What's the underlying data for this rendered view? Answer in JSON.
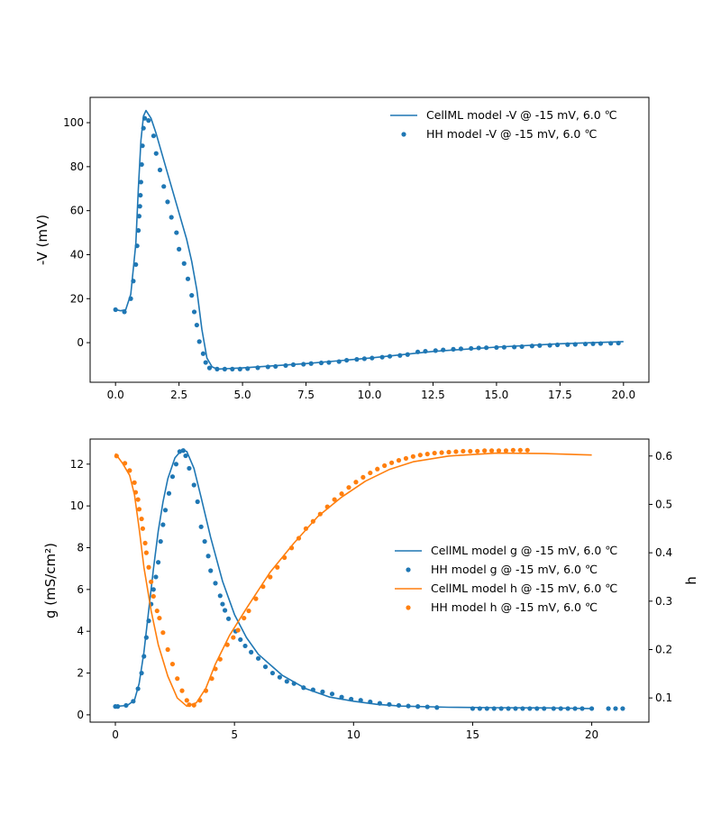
{
  "chart_data": [
    {
      "type": "line",
      "title": "",
      "xlabel": "",
      "ylabel": "-V (mV)",
      "xlim": [
        -1.0,
        21.0
      ],
      "ylim": [
        -18,
        111.5
      ],
      "xticks": [
        "0.0",
        "2.5",
        "5.0",
        "7.5",
        "10.0",
        "12.5",
        "15.0",
        "17.5",
        "20.0"
      ],
      "xtick_values": [
        0,
        2.5,
        5,
        7.5,
        10,
        12.5,
        15,
        17.5,
        20
      ],
      "yticks": [
        "0",
        "20",
        "40",
        "60",
        "80",
        "100"
      ],
      "ytick_values": [
        0,
        20,
        40,
        60,
        80,
        100
      ],
      "grid": false,
      "legend_position": "top-right",
      "series": [
        {
          "name": "CellML model -V @ -15 mV, 6.0 ℃",
          "style": "line",
          "color": "#1f77b4",
          "x": [
            0,
            0.2,
            0.4,
            0.6,
            0.8,
            0.9,
            1.0,
            1.1,
            1.2,
            1.4,
            1.6,
            1.8,
            2.0,
            2.4,
            2.8,
            3.0,
            3.2,
            3.4,
            3.6,
            3.8,
            4.0,
            5,
            7.5,
            10,
            12.5,
            15,
            17.5,
            20
          ],
          "y": [
            15,
            14.5,
            15,
            22,
            45,
            70,
            92,
            103,
            105.5,
            102,
            95,
            87,
            79,
            63,
            47,
            37,
            24,
            6,
            -7,
            -11,
            -12,
            -11.5,
            -9.5,
            -7,
            -4,
            -2,
            -0.5,
            0.5
          ]
        },
        {
          "name": "HH model -V @ -15 mV, 6.0 ℃",
          "style": "dots",
          "color": "#1f77b4",
          "x": [
            0,
            0.35,
            0.6,
            0.7,
            0.8,
            0.85,
            0.9,
            0.93,
            0.96,
            0.98,
            1.0,
            1.03,
            1.06,
            1.1,
            1.15,
            1.3,
            1.5,
            1.6,
            1.75,
            1.9,
            2.05,
            2.2,
            2.4,
            2.5,
            2.7,
            2.85,
            3.0,
            3.1,
            3.2,
            3.3,
            3.45,
            3.55,
            3.7,
            4.0,
            4.3,
            4.6,
            4.9,
            5.2,
            5.6,
            6.0,
            6.3,
            6.7,
            7.0,
            7.4,
            7.7,
            8.1,
            8.4,
            8.8,
            9.1,
            9.5,
            9.8,
            10.1,
            10.5,
            10.8,
            11.2,
            11.5,
            11.9,
            12.2,
            12.6,
            12.9,
            13.3,
            13.6,
            14.0,
            14.3,
            14.6,
            15.0,
            15.3,
            15.7,
            16.0,
            16.4,
            16.7,
            17.1,
            17.4,
            17.8,
            18.1,
            18.5,
            18.8,
            19.1,
            19.5,
            19.8
          ],
          "y": [
            15,
            14,
            20,
            28,
            35.5,
            44,
            51,
            57.5,
            62,
            67,
            73,
            81,
            89.5,
            97.5,
            102,
            101,
            94,
            86,
            78.5,
            71,
            64,
            57,
            50,
            42.5,
            36,
            29,
            21.5,
            14,
            8,
            0.5,
            -5,
            -9,
            -11.5,
            -12,
            -12,
            -12,
            -12,
            -11.8,
            -11.4,
            -11,
            -10.8,
            -10.4,
            -10,
            -9.8,
            -9.5,
            -9.2,
            -9,
            -8.6,
            -8,
            -7.6,
            -7.3,
            -7,
            -6.6,
            -6.2,
            -5.8,
            -5.4,
            -4.2,
            -3.9,
            -3.6,
            -3.3,
            -3,
            -2.8,
            -2.6,
            -2.4,
            -2.3,
            -2.2,
            -2.1,
            -2,
            -1.8,
            -1.5,
            -1.3,
            -1.2,
            -1,
            -0.9,
            -0.8,
            -0.6,
            -0.5,
            -0.4,
            -0.3,
            -0.2
          ]
        }
      ]
    },
    {
      "type": "line",
      "title": "",
      "xlabel": "",
      "ylabel": "g (mS/cm²)",
      "ylabel_parts": {
        "prefix": "g (mS/",
        "italic": "cm",
        "sup": "2",
        "suffix": ")"
      },
      "y2label": "h",
      "xlim": [
        -1.06,
        22.4
      ],
      "ylim": [
        -0.35,
        13.2
      ],
      "y2lim": [
        0.05,
        0.635
      ],
      "xticks": [
        "0",
        "5",
        "10",
        "15",
        "20"
      ],
      "xtick_values": [
        0,
        5,
        10,
        15,
        20
      ],
      "yticks": [
        "0",
        "2",
        "4",
        "6",
        "8",
        "10",
        "12"
      ],
      "ytick_values": [
        0,
        2,
        4,
        6,
        8,
        10,
        12
      ],
      "y2ticks": [
        "0.1",
        "0.2",
        "0.3",
        "0.4",
        "0.5",
        "0.6"
      ],
      "y2tick_values": [
        0.1,
        0.2,
        0.3,
        0.4,
        0.5,
        0.6
      ],
      "grid": false,
      "legend_position": "center-right",
      "series": [
        {
          "name": "CellML model g @ -15 mV, 6.0 ℃",
          "style": "line",
          "axis": "left",
          "color": "#1f77b4",
          "x": [
            0,
            0.5,
            0.8,
            1.0,
            1.2,
            1.4,
            1.6,
            1.8,
            2.0,
            2.2,
            2.5,
            2.8,
            3.0,
            3.3,
            3.6,
            4.0,
            4.5,
            5,
            5.5,
            6,
            7,
            8,
            9,
            10,
            11,
            12,
            14,
            16,
            18,
            20
          ],
          "y": [
            0.4,
            0.45,
            0.7,
            1.5,
            3.0,
            5,
            7,
            8.8,
            10.2,
            11.3,
            12.3,
            12.7,
            12.6,
            11.8,
            10.4,
            8.5,
            6.4,
            4.8,
            3.7,
            2.9,
            1.9,
            1.25,
            0.85,
            0.65,
            0.5,
            0.42,
            0.36,
            0.34,
            0.33,
            0.3
          ]
        },
        {
          "name": "HH model g @ -15 mV, 6.0 ℃",
          "style": "dots",
          "axis": "left",
          "color": "#1f77b4",
          "x": [
            0,
            0.1,
            0.45,
            0.75,
            0.95,
            1.1,
            1.2,
            1.3,
            1.4,
            1.5,
            1.6,
            1.7,
            1.8,
            1.9,
            2.0,
            2.1,
            2.25,
            2.4,
            2.55,
            2.7,
            2.85,
            2.95,
            3.1,
            3.3,
            3.45,
            3.6,
            3.75,
            3.9,
            4.0,
            4.2,
            4.4,
            4.5,
            4.6,
            4.75,
            5.05,
            5.25,
            5.45,
            5.7,
            6.0,
            6.3,
            6.6,
            6.9,
            7.2,
            7.5,
            7.9,
            8.3,
            8.7,
            9.1,
            9.5,
            9.9,
            10.3,
            10.7,
            11.1,
            11.5,
            11.9,
            12.3,
            12.7,
            13.1,
            13.5,
            15.0,
            15.3,
            15.6,
            15.9,
            16.2,
            16.5,
            16.8,
            17.1,
            17.4,
            17.7,
            18.0,
            18.4,
            18.7,
            19.0,
            19.3,
            19.6,
            20.0,
            20.7,
            21.0,
            21.3
          ],
          "y": [
            0.4,
            0.4,
            0.45,
            0.65,
            1.25,
            2.0,
            2.8,
            3.7,
            4.5,
            5.3,
            6.0,
            6.6,
            7.3,
            8.3,
            9.1,
            9.8,
            10.6,
            11.4,
            12.0,
            12.6,
            12.65,
            12.4,
            11.8,
            11.0,
            10.2,
            9.0,
            8.3,
            7.6,
            6.9,
            6.3,
            5.7,
            5.3,
            5.0,
            4.6,
            4.0,
            3.6,
            3.3,
            3.0,
            2.7,
            2.3,
            2.0,
            1.8,
            1.6,
            1.5,
            1.3,
            1.2,
            1.1,
            1.0,
            0.85,
            0.75,
            0.7,
            0.62,
            0.55,
            0.5,
            0.45,
            0.42,
            0.4,
            0.38,
            0.35,
            0.3,
            0.3,
            0.3,
            0.3,
            0.3,
            0.3,
            0.3,
            0.3,
            0.3,
            0.3,
            0.3,
            0.3,
            0.3,
            0.3,
            0.3,
            0.3,
            0.3,
            0.3,
            0.3,
            0.3
          ]
        },
        {
          "name": "CellML model h @ -15 mV, 6.0 ℃",
          "style": "line",
          "axis": "right",
          "color": "#ff7f0e",
          "x": [
            0,
            0.3,
            0.6,
            0.8,
            1.0,
            1.2,
            1.5,
            1.8,
            2.2,
            2.6,
            3.0,
            3.4,
            3.8,
            4.2,
            4.8,
            5.5,
            6.5,
            7.5,
            8.5,
            9.5,
            10.5,
            11.5,
            12.5,
            14,
            16,
            18,
            20
          ],
          "y": [
            0.605,
            0.585,
            0.56,
            0.52,
            0.45,
            0.37,
            0.28,
            0.21,
            0.145,
            0.1,
            0.083,
            0.09,
            0.12,
            0.17,
            0.23,
            0.285,
            0.36,
            0.42,
            0.475,
            0.515,
            0.548,
            0.572,
            0.588,
            0.6,
            0.606,
            0.605,
            0.602
          ]
        },
        {
          "name": "HH model h @ -15 mV, 6.0 ℃",
          "style": "dots",
          "axis": "right",
          "color": "#ff7f0e",
          "x": [
            0.05,
            0.4,
            0.6,
            0.8,
            0.85,
            0.95,
            1.0,
            1.1,
            1.15,
            1.25,
            1.3,
            1.4,
            1.5,
            1.6,
            1.75,
            1.85,
            2.0,
            2.2,
            2.4,
            2.6,
            2.8,
            3.0,
            3.1,
            3.3,
            3.55,
            3.8,
            4.05,
            4.2,
            4.4,
            4.7,
            4.95,
            5.15,
            5.4,
            5.6,
            5.9,
            6.2,
            6.5,
            6.8,
            7.1,
            7.4,
            7.7,
            8.0,
            8.3,
            8.6,
            8.9,
            9.2,
            9.5,
            9.8,
            10.1,
            10.4,
            10.7,
            11.0,
            11.3,
            11.6,
            11.9,
            12.2,
            12.5,
            12.8,
            13.1,
            13.4,
            13.7,
            14.0,
            14.3,
            14.6,
            14.9,
            15.2,
            15.5,
            15.8,
            16.1,
            16.4,
            16.7,
            17.0,
            17.3
          ],
          "y": [
            0.6,
            0.585,
            0.57,
            0.545,
            0.525,
            0.51,
            0.49,
            0.47,
            0.45,
            0.42,
            0.4,
            0.37,
            0.34,
            0.31,
            0.28,
            0.265,
            0.235,
            0.2,
            0.17,
            0.14,
            0.115,
            0.095,
            0.086,
            0.085,
            0.095,
            0.115,
            0.14,
            0.16,
            0.18,
            0.21,
            0.225,
            0.24,
            0.265,
            0.28,
            0.305,
            0.33,
            0.35,
            0.37,
            0.39,
            0.41,
            0.43,
            0.45,
            0.465,
            0.48,
            0.495,
            0.51,
            0.522,
            0.535,
            0.546,
            0.556,
            0.565,
            0.573,
            0.58,
            0.586,
            0.591,
            0.595,
            0.599,
            0.602,
            0.604,
            0.606,
            0.607,
            0.608,
            0.609,
            0.61,
            0.61,
            0.61,
            0.611,
            0.611,
            0.611,
            0.611,
            0.612,
            0.612,
            0.612
          ]
        }
      ]
    }
  ]
}
